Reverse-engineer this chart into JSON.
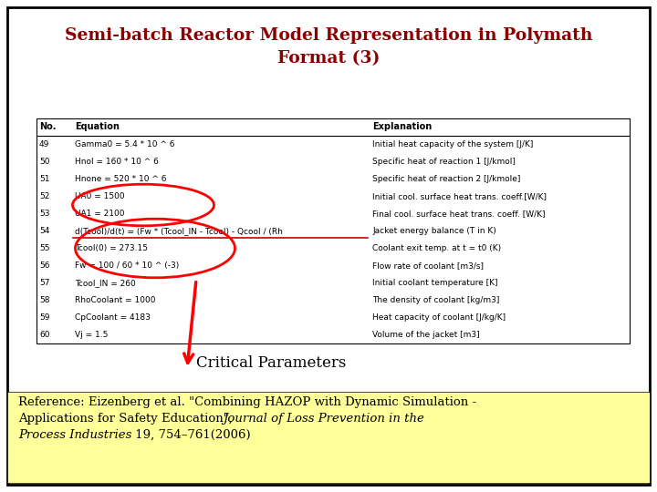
{
  "title_line1": "Semi-batch Reactor Model Representation in Polymath",
  "title_line2": "Format (3)",
  "title_color": "#8B0000",
  "background_color": "#FFFFFF",
  "border_color": "#000000",
  "table_header": [
    "No.",
    "Equation",
    "Explanation"
  ],
  "rows": [
    [
      "49",
      "Gamma0 = 5.4 * 10 ^ 6",
      "Initial heat capacity of the system [J/K]"
    ],
    [
      "50",
      "Hnol = 160 * 10 ^ 6",
      "Specific heat of reaction 1 [J/kmol]"
    ],
    [
      "51",
      "Hnone = 520 * 10 ^ 6",
      "Specific heat of reaction 2 [J/kmole]"
    ],
    [
      "52",
      "UA0 = 1500",
      "Initial cool. surface heat trans. coeff.[W/K]"
    ],
    [
      "53",
      "UA1 = 2100",
      "Final cool. surface heat trans. coeff. [W/K]"
    ],
    [
      "54",
      "d(Tcool)/d(t) = (Fw * (Tcool_IN - Tcool) - Qcool / (Rh",
      "Jacket energy balance (T in K)"
    ],
    [
      "55",
      "Tcool(0) = 273.15",
      "Coolant exit temp. at t = t0 (K)"
    ],
    [
      "56",
      "Fw = 100 / 60 * 10 ^ (-3)",
      "Flow rate of coolant [m3/s]"
    ],
    [
      "57",
      "Tcool_IN = 260",
      "Initial coolant temperature [K]"
    ],
    [
      "58",
      "RhoCoolant = 1000",
      "The density of coolant [kg/m3]"
    ],
    [
      "59",
      "CpCoolant = 4183",
      "Heat capacity of coolant [J/kg/K]"
    ],
    [
      "60",
      "Vj = 1.5",
      "Volume of the jacket [m3]"
    ]
  ],
  "ref_bg_color": "#FFFF99",
  "ref_text_line1": "Reference: Eizenberg et al. \"Combining HAZOP with Dynamic Simulation -",
  "ref_text_line2_plain": "Applications for Safety Education\", ",
  "ref_text_line2_italic": "Journal of Loss Prevention in the",
  "ref_text_line3_italic": "Process Industries",
  "ref_text_line3_plain": " 19, 754–761(2006)"
}
